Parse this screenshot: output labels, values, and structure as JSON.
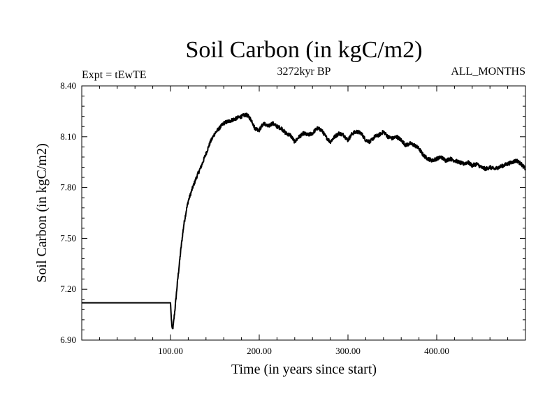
{
  "chart_data": {
    "type": "line",
    "title": "Soil Carbon (in kgC/m2)",
    "subtitle_left": "Expt = tEwTE",
    "subtitle_center": "3272kyr BP",
    "subtitle_right": "ALL_MONTHS",
    "xlabel": "Time (in years since start)",
    "ylabel": "Soil Carbon (in kgC/m2)",
    "xlim": [
      0,
      500
    ],
    "ylim": [
      6.9,
      8.4
    ],
    "x_ticks": [
      100,
      200,
      300,
      400
    ],
    "x_tick_labels": [
      "100.00",
      "200.00",
      "300.00",
      "400.00"
    ],
    "y_ticks": [
      6.9,
      7.2,
      7.5,
      7.8,
      8.1,
      8.4
    ],
    "y_tick_labels": [
      "6.90",
      "7.20",
      "7.50",
      "7.80",
      "8.10",
      "8.40"
    ],
    "series": [
      {
        "name": "Soil Carbon",
        "color": "#000000",
        "points": [
          [
            0,
            7.12
          ],
          [
            100,
            7.12
          ],
          [
            101,
            7.02
          ],
          [
            102,
            6.96
          ],
          [
            103,
            6.98
          ],
          [
            105,
            7.08
          ],
          [
            108,
            7.25
          ],
          [
            112,
            7.45
          ],
          [
            115,
            7.58
          ],
          [
            118,
            7.67
          ],
          [
            120,
            7.72
          ],
          [
            125,
            7.8
          ],
          [
            130,
            7.87
          ],
          [
            135,
            7.93
          ],
          [
            140,
            8.0
          ],
          [
            145,
            8.07
          ],
          [
            150,
            8.12
          ],
          [
            155,
            8.15
          ],
          [
            160,
            8.18
          ],
          [
            165,
            8.19
          ],
          [
            170,
            8.2
          ],
          [
            175,
            8.21
          ],
          [
            180,
            8.22
          ],
          [
            185,
            8.23
          ],
          [
            188,
            8.22
          ],
          [
            192,
            8.19
          ],
          [
            195,
            8.15
          ],
          [
            200,
            8.14
          ],
          [
            205,
            8.18
          ],
          [
            210,
            8.16
          ],
          [
            215,
            8.18
          ],
          [
            220,
            8.16
          ],
          [
            225,
            8.15
          ],
          [
            230,
            8.12
          ],
          [
            235,
            8.11
          ],
          [
            240,
            8.07
          ],
          [
            245,
            8.1
          ],
          [
            250,
            8.12
          ],
          [
            255,
            8.11
          ],
          [
            260,
            8.12
          ],
          [
            265,
            8.15
          ],
          [
            270,
            8.14
          ],
          [
            275,
            8.1
          ],
          [
            280,
            8.07
          ],
          [
            285,
            8.1
          ],
          [
            290,
            8.12
          ],
          [
            295,
            8.11
          ],
          [
            300,
            8.08
          ],
          [
            305,
            8.12
          ],
          [
            310,
            8.13
          ],
          [
            315,
            8.12
          ],
          [
            320,
            8.08
          ],
          [
            325,
            8.07
          ],
          [
            330,
            8.1
          ],
          [
            335,
            8.11
          ],
          [
            340,
            8.13
          ],
          [
            345,
            8.1
          ],
          [
            350,
            8.09
          ],
          [
            355,
            8.1
          ],
          [
            360,
            8.08
          ],
          [
            365,
            8.05
          ],
          [
            370,
            8.06
          ],
          [
            375,
            8.05
          ],
          [
            380,
            8.03
          ],
          [
            385,
            7.99
          ],
          [
            390,
            7.97
          ],
          [
            395,
            7.96
          ],
          [
            400,
            7.97
          ],
          [
            405,
            7.98
          ],
          [
            410,
            7.96
          ],
          [
            415,
            7.97
          ],
          [
            420,
            7.96
          ],
          [
            425,
            7.95
          ],
          [
            430,
            7.94
          ],
          [
            435,
            7.95
          ],
          [
            440,
            7.93
          ],
          [
            445,
            7.94
          ],
          [
            450,
            7.92
          ],
          [
            455,
            7.91
          ],
          [
            460,
            7.92
          ],
          [
            465,
            7.91
          ],
          [
            470,
            7.92
          ],
          [
            475,
            7.93
          ],
          [
            480,
            7.94
          ],
          [
            485,
            7.95
          ],
          [
            490,
            7.96
          ],
          [
            495,
            7.94
          ],
          [
            500,
            7.91
          ]
        ]
      }
    ]
  }
}
